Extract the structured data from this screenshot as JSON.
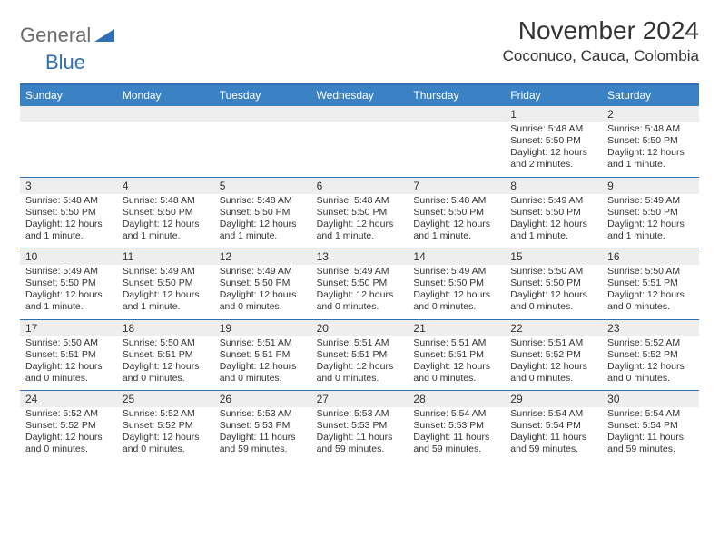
{
  "brand": {
    "general": "General",
    "blue": "Blue"
  },
  "title": "November 2024",
  "location": "Coconuco, Cauca, Colombia",
  "colors": {
    "header_bg": "#3b82c4",
    "border": "#2f6fb3",
    "daynum_bg": "#eeeeee",
    "text": "#333333",
    "white": "#ffffff"
  },
  "day_names": [
    "Sunday",
    "Monday",
    "Tuesday",
    "Wednesday",
    "Thursday",
    "Friday",
    "Saturday"
  ],
  "weeks": [
    [
      {
        "n": "",
        "sunrise": "",
        "sunset": "",
        "daylight": ""
      },
      {
        "n": "",
        "sunrise": "",
        "sunset": "",
        "daylight": ""
      },
      {
        "n": "",
        "sunrise": "",
        "sunset": "",
        "daylight": ""
      },
      {
        "n": "",
        "sunrise": "",
        "sunset": "",
        "daylight": ""
      },
      {
        "n": "",
        "sunrise": "",
        "sunset": "",
        "daylight": ""
      },
      {
        "n": "1",
        "sunrise": "Sunrise: 5:48 AM",
        "sunset": "Sunset: 5:50 PM",
        "daylight": "Daylight: 12 hours and 2 minutes."
      },
      {
        "n": "2",
        "sunrise": "Sunrise: 5:48 AM",
        "sunset": "Sunset: 5:50 PM",
        "daylight": "Daylight: 12 hours and 1 minute."
      }
    ],
    [
      {
        "n": "3",
        "sunrise": "Sunrise: 5:48 AM",
        "sunset": "Sunset: 5:50 PM",
        "daylight": "Daylight: 12 hours and 1 minute."
      },
      {
        "n": "4",
        "sunrise": "Sunrise: 5:48 AM",
        "sunset": "Sunset: 5:50 PM",
        "daylight": "Daylight: 12 hours and 1 minute."
      },
      {
        "n": "5",
        "sunrise": "Sunrise: 5:48 AM",
        "sunset": "Sunset: 5:50 PM",
        "daylight": "Daylight: 12 hours and 1 minute."
      },
      {
        "n": "6",
        "sunrise": "Sunrise: 5:48 AM",
        "sunset": "Sunset: 5:50 PM",
        "daylight": "Daylight: 12 hours and 1 minute."
      },
      {
        "n": "7",
        "sunrise": "Sunrise: 5:48 AM",
        "sunset": "Sunset: 5:50 PM",
        "daylight": "Daylight: 12 hours and 1 minute."
      },
      {
        "n": "8",
        "sunrise": "Sunrise: 5:49 AM",
        "sunset": "Sunset: 5:50 PM",
        "daylight": "Daylight: 12 hours and 1 minute."
      },
      {
        "n": "9",
        "sunrise": "Sunrise: 5:49 AM",
        "sunset": "Sunset: 5:50 PM",
        "daylight": "Daylight: 12 hours and 1 minute."
      }
    ],
    [
      {
        "n": "10",
        "sunrise": "Sunrise: 5:49 AM",
        "sunset": "Sunset: 5:50 PM",
        "daylight": "Daylight: 12 hours and 1 minute."
      },
      {
        "n": "11",
        "sunrise": "Sunrise: 5:49 AM",
        "sunset": "Sunset: 5:50 PM",
        "daylight": "Daylight: 12 hours and 1 minute."
      },
      {
        "n": "12",
        "sunrise": "Sunrise: 5:49 AM",
        "sunset": "Sunset: 5:50 PM",
        "daylight": "Daylight: 12 hours and 0 minutes."
      },
      {
        "n": "13",
        "sunrise": "Sunrise: 5:49 AM",
        "sunset": "Sunset: 5:50 PM",
        "daylight": "Daylight: 12 hours and 0 minutes."
      },
      {
        "n": "14",
        "sunrise": "Sunrise: 5:49 AM",
        "sunset": "Sunset: 5:50 PM",
        "daylight": "Daylight: 12 hours and 0 minutes."
      },
      {
        "n": "15",
        "sunrise": "Sunrise: 5:50 AM",
        "sunset": "Sunset: 5:50 PM",
        "daylight": "Daylight: 12 hours and 0 minutes."
      },
      {
        "n": "16",
        "sunrise": "Sunrise: 5:50 AM",
        "sunset": "Sunset: 5:51 PM",
        "daylight": "Daylight: 12 hours and 0 minutes."
      }
    ],
    [
      {
        "n": "17",
        "sunrise": "Sunrise: 5:50 AM",
        "sunset": "Sunset: 5:51 PM",
        "daylight": "Daylight: 12 hours and 0 minutes."
      },
      {
        "n": "18",
        "sunrise": "Sunrise: 5:50 AM",
        "sunset": "Sunset: 5:51 PM",
        "daylight": "Daylight: 12 hours and 0 minutes."
      },
      {
        "n": "19",
        "sunrise": "Sunrise: 5:51 AM",
        "sunset": "Sunset: 5:51 PM",
        "daylight": "Daylight: 12 hours and 0 minutes."
      },
      {
        "n": "20",
        "sunrise": "Sunrise: 5:51 AM",
        "sunset": "Sunset: 5:51 PM",
        "daylight": "Daylight: 12 hours and 0 minutes."
      },
      {
        "n": "21",
        "sunrise": "Sunrise: 5:51 AM",
        "sunset": "Sunset: 5:51 PM",
        "daylight": "Daylight: 12 hours and 0 minutes."
      },
      {
        "n": "22",
        "sunrise": "Sunrise: 5:51 AM",
        "sunset": "Sunset: 5:52 PM",
        "daylight": "Daylight: 12 hours and 0 minutes."
      },
      {
        "n": "23",
        "sunrise": "Sunrise: 5:52 AM",
        "sunset": "Sunset: 5:52 PM",
        "daylight": "Daylight: 12 hours and 0 minutes."
      }
    ],
    [
      {
        "n": "24",
        "sunrise": "Sunrise: 5:52 AM",
        "sunset": "Sunset: 5:52 PM",
        "daylight": "Daylight: 12 hours and 0 minutes."
      },
      {
        "n": "25",
        "sunrise": "Sunrise: 5:52 AM",
        "sunset": "Sunset: 5:52 PM",
        "daylight": "Daylight: 12 hours and 0 minutes."
      },
      {
        "n": "26",
        "sunrise": "Sunrise: 5:53 AM",
        "sunset": "Sunset: 5:53 PM",
        "daylight": "Daylight: 11 hours and 59 minutes."
      },
      {
        "n": "27",
        "sunrise": "Sunrise: 5:53 AM",
        "sunset": "Sunset: 5:53 PM",
        "daylight": "Daylight: 11 hours and 59 minutes."
      },
      {
        "n": "28",
        "sunrise": "Sunrise: 5:54 AM",
        "sunset": "Sunset: 5:53 PM",
        "daylight": "Daylight: 11 hours and 59 minutes."
      },
      {
        "n": "29",
        "sunrise": "Sunrise: 5:54 AM",
        "sunset": "Sunset: 5:54 PM",
        "daylight": "Daylight: 11 hours and 59 minutes."
      },
      {
        "n": "30",
        "sunrise": "Sunrise: 5:54 AM",
        "sunset": "Sunset: 5:54 PM",
        "daylight": "Daylight: 11 hours and 59 minutes."
      }
    ]
  ]
}
